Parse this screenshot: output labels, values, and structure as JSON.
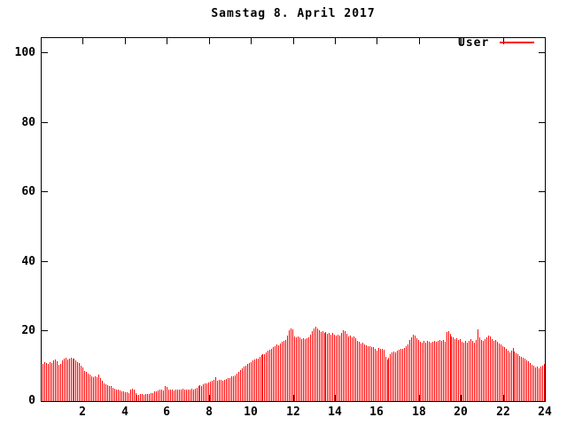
{
  "title": "Samstag 8. April 2017",
  "legend": {
    "series_label": "User"
  },
  "colors": {
    "series": "#ff0000",
    "frame": "#000000",
    "background": "#ffffff"
  },
  "chart_data": {
    "type": "bar",
    "subtype": "impulses",
    "title": "Samstag 8. April 2017",
    "series_name": "User",
    "xlabel": "",
    "ylabel": "",
    "xlim": [
      0,
      24
    ],
    "ylim": [
      0,
      105
    ],
    "xticks": [
      2,
      4,
      6,
      8,
      10,
      12,
      14,
      16,
      18,
      20,
      22,
      24
    ],
    "yticks": [
      0,
      20,
      40,
      60,
      80,
      100
    ],
    "grid": false,
    "legend_position": "top-right-inside",
    "bar_color": "#ff0000",
    "x_start_hour": 0,
    "sample_interval_minutes": 5,
    "values": [
      10.8,
      11.2,
      11.0,
      10.7,
      11.3,
      11.0,
      11.6,
      12.0,
      11.5,
      10.4,
      10.6,
      11.8,
      12.2,
      12.4,
      11.9,
      12.3,
      12.5,
      12.1,
      12.3,
      11.8,
      11.2,
      10.9,
      10.2,
      9.7,
      8.7,
      8.4,
      8.0,
      7.7,
      7.2,
      6.9,
      7.0,
      6.8,
      7.6,
      6.5,
      5.8,
      5.2,
      4.9,
      4.6,
      4.3,
      4.2,
      3.9,
      3.6,
      3.3,
      3.4,
      3.1,
      2.9,
      2.8,
      2.6,
      2.5,
      2.4,
      3.4,
      3.6,
      3.3,
      2.2,
      1.9,
      1.8,
      2.0,
      2.1,
      1.9,
      2.0,
      2.1,
      2.0,
      2.2,
      2.4,
      2.7,
      2.9,
      3.0,
      3.2,
      3.3,
      3.1,
      4.4,
      4.1,
      3.4,
      3.2,
      3.3,
      3.1,
      3.3,
      3.4,
      3.2,
      3.3,
      3.5,
      3.3,
      3.2,
      3.4,
      3.3,
      3.5,
      3.4,
      3.6,
      3.8,
      4.2,
      4.5,
      4.4,
      4.8,
      5.0,
      5.2,
      5.4,
      5.7,
      5.9,
      6.1,
      6.9,
      5.9,
      6.0,
      6.2,
      5.8,
      6.1,
      6.3,
      6.5,
      6.7,
      7.0,
      7.2,
      7.5,
      7.8,
      8.3,
      8.8,
      9.3,
      9.8,
      10.2,
      10.6,
      10.9,
      11.2,
      11.6,
      12.0,
      12.3,
      12.2,
      12.8,
      13.2,
      13.6,
      13.4,
      14.1,
      14.5,
      14.8,
      15.1,
      15.4,
      15.8,
      16.2,
      16.0,
      16.6,
      17.0,
      17.3,
      17.6,
      18.9,
      20.3,
      20.8,
      20.5,
      18.5,
      18.2,
      18.7,
      18.3,
      17.9,
      18.1,
      17.7,
      18.0,
      18.4,
      19.0,
      20.2,
      20.8,
      21.3,
      20.9,
      20.4,
      19.8,
      20.1,
      19.6,
      19.9,
      19.4,
      19.7,
      19.2,
      19.5,
      19.0,
      18.8,
      19.2,
      18.9,
      19.6,
      20.4,
      20.0,
      19.3,
      18.6,
      18.9,
      18.3,
      18.6,
      18.1,
      17.4,
      17.0,
      16.6,
      16.9,
      16.3,
      16.0,
      15.7,
      15.9,
      15.4,
      15.6,
      15.0,
      14.6,
      15.2,
      14.9,
      15.1,
      14.7,
      12.6,
      11.9,
      12.4,
      13.4,
      13.9,
      14.3,
      14.0,
      14.4,
      14.8,
      15.1,
      14.9,
      15.3,
      15.7,
      16.4,
      17.6,
      18.2,
      19.1,
      18.8,
      18.0,
      17.5,
      17.1,
      16.8,
      17.2,
      16.9,
      17.3,
      17.0,
      16.7,
      17.1,
      17.4,
      17.0,
      17.3,
      17.6,
      17.2,
      17.5,
      17.1,
      19.8,
      20.2,
      19.4,
      18.7,
      18.2,
      17.8,
      18.1,
      17.6,
      17.9,
      17.0,
      16.7,
      17.2,
      16.9,
      17.4,
      17.8,
      17.3,
      16.8,
      17.5,
      20.5,
      18.3,
      17.6,
      17.2,
      17.9,
      18.4,
      18.9,
      18.5,
      17.8,
      17.3,
      17.6,
      17.0,
      16.6,
      16.2,
      15.8,
      15.4,
      14.9,
      14.5,
      14.1,
      14.4,
      15.3,
      14.2,
      13.8,
      13.4,
      13.0,
      12.7,
      12.4,
      12.1,
      11.8,
      11.4,
      11.0,
      10.5,
      10.1,
      9.7,
      9.9,
      9.5,
      10.0,
      10.3,
      10.6
    ]
  }
}
